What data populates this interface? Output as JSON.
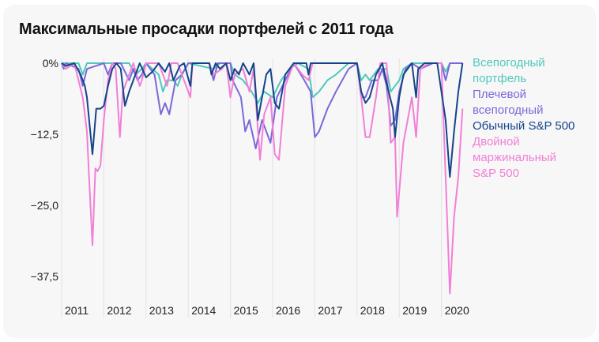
{
  "chart_data": {
    "type": "line",
    "title": "Максимальные просадки портфелей с 2011 года",
    "xlabel": "",
    "ylabel": "",
    "xlim": [
      2011,
      2020.55
    ],
    "ylim": [
      -42,
      0
    ],
    "yticks": [
      0,
      -12.5,
      -25,
      -37.5
    ],
    "ytick_labels": [
      "0%",
      "−12,5",
      "−25,0",
      "−37,5"
    ],
    "xticks": [
      2011,
      2012,
      2013,
      2014,
      2015,
      2016,
      2017,
      2018,
      2019,
      2020
    ],
    "xtick_labels": [
      "2011",
      "2012",
      "2013",
      "2014",
      "2015",
      "2016",
      "2017",
      "2018",
      "2019",
      "2020"
    ],
    "grid": "vertical",
    "legend": "right",
    "series": [
      {
        "name": "Всепогодный портфель",
        "color": "#4fc9b9",
        "x": [
          2011.0,
          2011.4,
          2011.5,
          2011.6,
          2012.6,
          2012.75,
          2012.9,
          2013.0,
          2013.3,
          2013.4,
          2013.5,
          2013.65,
          2013.75,
          2013.85,
          2014.0,
          2014.6,
          2014.75,
          2015.0,
          2015.1,
          2015.3,
          2015.5,
          2015.65,
          2015.8,
          2016.0,
          2016.2,
          2016.4,
          2016.6,
          2016.85,
          2016.95,
          2017.1,
          2017.3,
          2017.5,
          2017.8,
          2018.0,
          2018.1,
          2018.2,
          2018.3,
          2018.5,
          2018.7,
          2018.8,
          2018.9,
          2019.0,
          2019.1,
          2019.3,
          2020.0,
          2020.1,
          2020.2,
          2020.5
        ],
        "y": [
          0,
          0,
          -2,
          0,
          0,
          -2,
          -1,
          0,
          -2,
          -5,
          -3,
          -3,
          -4,
          -2,
          0,
          -1,
          0,
          0,
          -2,
          -3,
          -5,
          -7,
          -5,
          -6,
          -3,
          -1,
          0,
          -1,
          -6,
          -5,
          -3,
          -2,
          0,
          0,
          -3,
          -2,
          -3,
          -1,
          -1,
          -5,
          -4,
          -3,
          -1,
          0,
          0,
          -1.5,
          0,
          0
        ]
      },
      {
        "name": "Плечевой всепогодный",
        "color": "#7b68d8",
        "x": [
          2011.0,
          2011.05,
          2011.1,
          2011.4,
          2011.5,
          2011.6,
          2012.0,
          2012.1,
          2012.2,
          2012.4,
          2012.6,
          2012.7,
          2012.8,
          2012.9,
          2013.0,
          2013.2,
          2013.35,
          2013.45,
          2013.55,
          2013.7,
          2013.85,
          2014.0,
          2014.5,
          2014.6,
          2014.7,
          2015.0,
          2015.05,
          2015.25,
          2015.35,
          2015.45,
          2015.6,
          2015.75,
          2015.95,
          2016.1,
          2016.3,
          2016.5,
          2016.75,
          2016.9,
          2017.0,
          2017.1,
          2017.3,
          2017.5,
          2017.8,
          2018.0,
          2018.1,
          2018.2,
          2018.35,
          2018.5,
          2018.6,
          2018.7,
          2018.8,
          2018.9,
          2019.0,
          2019.15,
          2019.3,
          2019.5,
          2019.8,
          2020.0,
          2020.1,
          2020.2,
          2020.5
        ],
        "y": [
          0,
          -1,
          0,
          -1,
          -4,
          -1,
          0,
          -2,
          0,
          0,
          -3,
          -1,
          -3,
          -2,
          0,
          -2,
          -9,
          -7,
          -9,
          -3,
          -2,
          0,
          0,
          -3,
          0,
          0,
          -3,
          -6,
          -12,
          -10,
          -15,
          -10,
          -14,
          -6,
          -3,
          0,
          -3,
          -5,
          -13,
          -12,
          -8,
          -5,
          -1,
          0,
          -6,
          -6,
          -3,
          -3,
          -1,
          -4,
          -11,
          -10,
          -5,
          -1,
          0,
          -1,
          0,
          0,
          -3,
          0,
          0
        ]
      },
      {
        "name": "Обычный S&P 500",
        "color": "#14448a",
        "x": [
          2011.0,
          2011.1,
          2011.3,
          2011.45,
          2011.55,
          2011.6,
          2011.73,
          2011.82,
          2011.92,
          2012.0,
          2012.1,
          2012.2,
          2012.3,
          2012.4,
          2012.5,
          2012.6,
          2012.75,
          2012.85,
          2013.0,
          2013.15,
          2013.3,
          2013.45,
          2013.55,
          2013.65,
          2013.8,
          2013.9,
          2014.05,
          2014.1,
          2014.5,
          2014.55,
          2014.65,
          2014.75,
          2014.9,
          2015.0,
          2015.1,
          2015.2,
          2015.3,
          2015.45,
          2015.55,
          2015.65,
          2015.75,
          2015.85,
          2015.95,
          2016.05,
          2016.15,
          2016.3,
          2016.5,
          2016.8,
          2016.85,
          2016.9,
          2018.0,
          2018.1,
          2018.2,
          2018.3,
          2018.45,
          2018.6,
          2018.75,
          2018.85,
          2018.9,
          2019.0,
          2019.1,
          2019.3,
          2019.4,
          2019.45,
          2019.6,
          2019.9,
          2020.1,
          2020.2,
          2020.3,
          2020.4,
          2020.5
        ],
        "y": [
          0,
          -0.5,
          0,
          -2,
          -4,
          -6,
          -16,
          -8,
          -8,
          -7.5,
          -4,
          -1,
          0,
          -1,
          -7.5,
          -5,
          -2,
          0,
          -2.5,
          -1.5,
          0,
          -1.5,
          0,
          -3,
          -0.5,
          0,
          -4,
          0,
          0,
          -2,
          0,
          -1,
          0,
          -3,
          -1,
          -2,
          0,
          -2,
          0,
          -10,
          -6,
          -2,
          -1,
          -7,
          -8,
          -2,
          0,
          0,
          -2,
          0,
          0,
          -5,
          -7,
          -6,
          -2,
          0,
          -5,
          -8,
          -13,
          -6,
          -2,
          0,
          -6,
          -1,
          0,
          0,
          -10,
          -20,
          -12,
          -5,
          0
        ]
      },
      {
        "name": "Двойной маржинальный S&P 500",
        "color": "#f27fd6",
        "x": [
          2011.0,
          2011.1,
          2011.3,
          2011.5,
          2011.6,
          2011.65,
          2011.73,
          2011.8,
          2011.85,
          2011.92,
          2012.0,
          2012.1,
          2012.2,
          2012.28,
          2012.38,
          2012.45,
          2012.55,
          2012.7,
          2012.85,
          2012.9,
          2013.0,
          2013.3,
          2013.4,
          2013.5,
          2013.6,
          2013.75,
          2014.05,
          2014.1,
          2014.5,
          2014.6,
          2014.8,
          2014.9,
          2015.0,
          2015.1,
          2015.3,
          2015.45,
          2015.55,
          2015.7,
          2015.8,
          2015.95,
          2016.05,
          2016.15,
          2016.3,
          2016.5,
          2016.7,
          2016.85,
          2016.95,
          2018.0,
          2018.1,
          2018.2,
          2018.3,
          2018.45,
          2018.55,
          2018.7,
          2018.8,
          2018.9,
          2018.95,
          2019.1,
          2019.3,
          2019.4,
          2019.5,
          2019.7,
          2020.0,
          2020.1,
          2020.2,
          2020.3,
          2020.4,
          2020.5
        ],
        "y": [
          0,
          -1,
          0,
          -6,
          -12,
          -20,
          -32,
          -18.5,
          -19,
          -18,
          -10,
          -3,
          0,
          -1,
          -13,
          -5,
          -3,
          0,
          -4,
          -3,
          0,
          0,
          -2,
          -4,
          0,
          0,
          -6,
          0,
          0,
          -2,
          -1,
          0,
          -6,
          -2,
          -1,
          -5,
          -1,
          -17,
          -9,
          -6,
          -16,
          -17,
          -4,
          0,
          -2,
          -3,
          0,
          0,
          -6,
          -13,
          -13,
          -6,
          0,
          0,
          -14,
          -13,
          -27,
          -14,
          -6,
          -13,
          -1,
          0,
          0,
          -20,
          -40.5,
          -27,
          -20,
          -8
        ]
      }
    ]
  }
}
